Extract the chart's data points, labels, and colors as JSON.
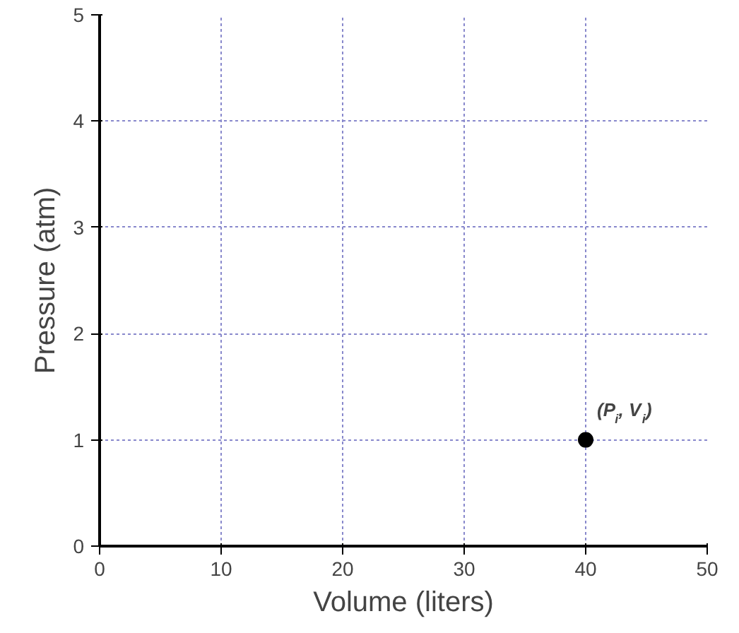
{
  "chart_data": {
    "type": "scatter",
    "xlabel": "Volume (liters)",
    "ylabel": "Pressure (atm)",
    "x": [
      40
    ],
    "values": [
      1
    ],
    "color": "#000000",
    "marker": "circle",
    "xlim": [
      0,
      50
    ],
    "ylim": [
      0,
      5
    ],
    "xticks": [
      0,
      10,
      20,
      30,
      40,
      50
    ],
    "yticks": [
      0,
      1,
      2,
      3,
      4,
      5
    ],
    "grid": true,
    "annotations": [
      {
        "text": "(P$_{i}$, V$_{i}$)",
        "x": 40,
        "y": 1
      }
    ]
  }
}
